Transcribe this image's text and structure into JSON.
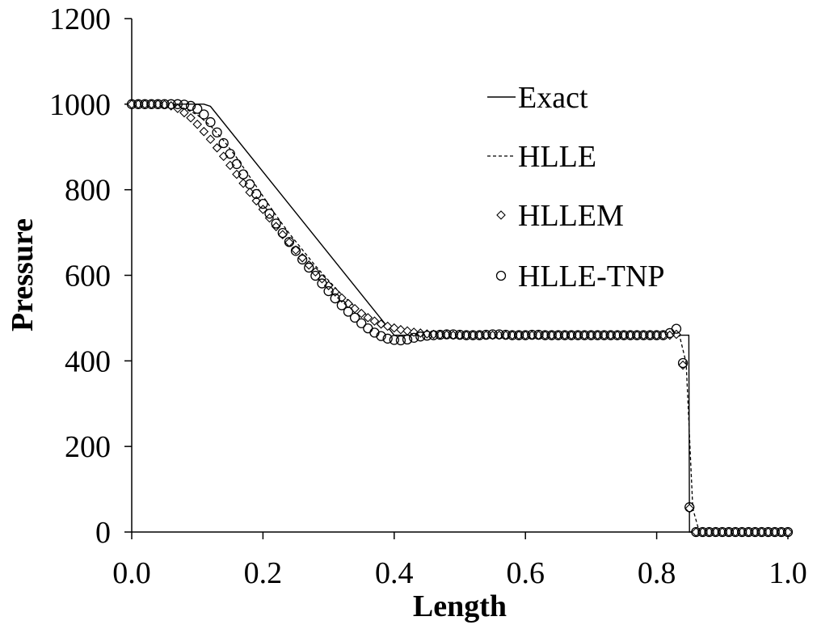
{
  "chart_data": {
    "type": "line",
    "title": "",
    "xlabel": "Length",
    "ylabel": "Pressure",
    "xlim": [
      0.0,
      1.0
    ],
    "ylim": [
      0,
      1200
    ],
    "xticks": [
      0.0,
      0.2,
      0.4,
      0.6,
      0.8,
      1.0
    ],
    "xtick_labels": [
      "0.0",
      "0.2",
      "0.4",
      "0.6",
      "0.8",
      "1.0"
    ],
    "yticks": [
      0,
      200,
      400,
      600,
      800,
      1000,
      1200
    ],
    "ytick_labels": [
      "0",
      "200",
      "400",
      "600",
      "800",
      "1000",
      "1200"
    ],
    "grid": false,
    "legend_position": "top-right",
    "series": [
      {
        "name": "Exact",
        "style": "solid-line",
        "x": [
          0.0,
          0.11,
          0.12,
          0.4,
          0.43,
          0.849,
          0.849,
          0.85,
          1.0
        ],
        "y": [
          1000,
          1000,
          995,
          460,
          460,
          460,
          460,
          0,
          0
        ]
      },
      {
        "name": "HLLE",
        "style": "dashed-line",
        "x": [
          0.0,
          0.035,
          0.06,
          0.08,
          0.1,
          0.12,
          0.14,
          0.16,
          0.18,
          0.2,
          0.22,
          0.24,
          0.26,
          0.28,
          0.3,
          0.32,
          0.34,
          0.36,
          0.38,
          0.4,
          0.42,
          0.44,
          0.46,
          0.48,
          0.5,
          0.6,
          0.7,
          0.8,
          0.82,
          0.835,
          0.845,
          0.855,
          0.865,
          1.0
        ],
        "y": [
          1000,
          1000,
          998,
          990,
          975,
          950,
          915,
          875,
          830,
          785,
          740,
          698,
          660,
          622,
          588,
          555,
          527,
          505,
          488,
          478,
          470,
          465,
          462,
          461,
          460,
          460,
          460,
          460,
          460,
          458,
          395,
          55,
          0,
          0
        ]
      },
      {
        "name": "HLLEM",
        "style": "diamond-marker",
        "x": [
          0.0,
          0.01,
          0.02,
          0.03,
          0.04,
          0.05,
          0.06,
          0.07,
          0.08,
          0.09,
          0.1,
          0.11,
          0.12,
          0.13,
          0.14,
          0.15,
          0.16,
          0.17,
          0.18,
          0.19,
          0.2,
          0.21,
          0.22,
          0.23,
          0.24,
          0.25,
          0.26,
          0.27,
          0.28,
          0.29,
          0.3,
          0.31,
          0.32,
          0.33,
          0.34,
          0.35,
          0.36,
          0.37,
          0.38,
          0.39,
          0.4,
          0.41,
          0.42,
          0.43,
          0.44,
          0.45,
          0.46,
          0.47,
          0.48,
          0.49,
          0.5,
          0.51,
          0.52,
          0.53,
          0.54,
          0.55,
          0.56,
          0.57,
          0.58,
          0.59,
          0.6,
          0.61,
          0.62,
          0.63,
          0.64,
          0.65,
          0.66,
          0.67,
          0.68,
          0.69,
          0.7,
          0.71,
          0.72,
          0.73,
          0.74,
          0.75,
          0.76,
          0.77,
          0.78,
          0.79,
          0.8,
          0.81,
          0.82,
          0.83,
          0.84,
          0.85,
          0.86,
          0.87,
          0.88,
          0.89,
          0.9,
          0.91,
          0.92,
          0.93,
          0.94,
          0.95,
          0.96,
          0.97,
          0.98,
          0.99,
          1.0
        ],
        "y": [
          1000,
          1000,
          1000,
          1000,
          1000,
          999,
          996,
          990,
          980,
          968,
          953,
          936,
          918,
          898,
          878,
          857,
          836,
          815,
          794,
          774,
          754,
          734,
          714,
          695,
          677,
          659,
          641,
          624,
          608,
          592,
          576,
          561,
          547,
          534,
          522,
          511,
          501,
          493,
          486,
          481,
          477,
          473,
          470,
          467,
          465,
          463,
          462,
          461,
          461,
          460,
          460,
          460,
          460,
          460,
          460,
          460,
          460,
          460,
          460,
          460,
          460,
          460,
          460,
          460,
          460,
          460,
          460,
          460,
          460,
          460,
          460,
          460,
          460,
          460,
          460,
          460,
          460,
          460,
          460,
          460,
          460,
          460,
          460,
          462,
          390,
          55,
          0,
          0,
          0,
          0,
          0,
          0,
          0,
          0,
          0,
          0,
          0,
          0,
          0,
          0,
          0
        ]
      },
      {
        "name": "HLLE-TNP",
        "style": "circle-marker",
        "x": [
          0.0,
          0.01,
          0.02,
          0.03,
          0.04,
          0.05,
          0.06,
          0.07,
          0.08,
          0.09,
          0.1,
          0.11,
          0.12,
          0.13,
          0.14,
          0.15,
          0.16,
          0.17,
          0.18,
          0.19,
          0.2,
          0.21,
          0.22,
          0.23,
          0.24,
          0.25,
          0.26,
          0.27,
          0.28,
          0.29,
          0.3,
          0.31,
          0.32,
          0.33,
          0.34,
          0.35,
          0.36,
          0.37,
          0.38,
          0.39,
          0.4,
          0.41,
          0.42,
          0.43,
          0.44,
          0.45,
          0.46,
          0.47,
          0.48,
          0.49,
          0.5,
          0.51,
          0.52,
          0.53,
          0.54,
          0.55,
          0.56,
          0.57,
          0.58,
          0.59,
          0.6,
          0.61,
          0.62,
          0.63,
          0.64,
          0.65,
          0.66,
          0.67,
          0.68,
          0.69,
          0.7,
          0.71,
          0.72,
          0.73,
          0.74,
          0.75,
          0.76,
          0.77,
          0.78,
          0.79,
          0.8,
          0.81,
          0.82,
          0.83,
          0.84,
          0.85,
          0.86,
          0.87,
          0.88,
          0.89,
          0.9,
          0.91,
          0.92,
          0.93,
          0.94,
          0.95,
          0.96,
          0.97,
          0.98,
          0.99,
          1.0
        ],
        "y": [
          1000,
          1000,
          1000,
          1000,
          1000,
          1000,
          1000,
          1000,
          999,
          996,
          989,
          976,
          958,
          934,
          909,
          884,
          860,
          836,
          813,
          790,
          767,
          744,
          721,
          699,
          678,
          657,
          637,
          618,
          599,
          581,
          563,
          546,
          530,
          515,
          501,
          488,
          476,
          466,
          458,
          452,
          449,
          448,
          450,
          454,
          457,
          459,
          460,
          461,
          462,
          462,
          461,
          460,
          460,
          460,
          461,
          462,
          462,
          461,
          460,
          460,
          460,
          461,
          461,
          460,
          460,
          460,
          460,
          460,
          460,
          460,
          460,
          460,
          460,
          460,
          460,
          460,
          460,
          460,
          460,
          460,
          460,
          460,
          465,
          475,
          395,
          58,
          0,
          0,
          0,
          0,
          0,
          0,
          0,
          0,
          0,
          0,
          0,
          0,
          0,
          0,
          0
        ]
      }
    ]
  }
}
